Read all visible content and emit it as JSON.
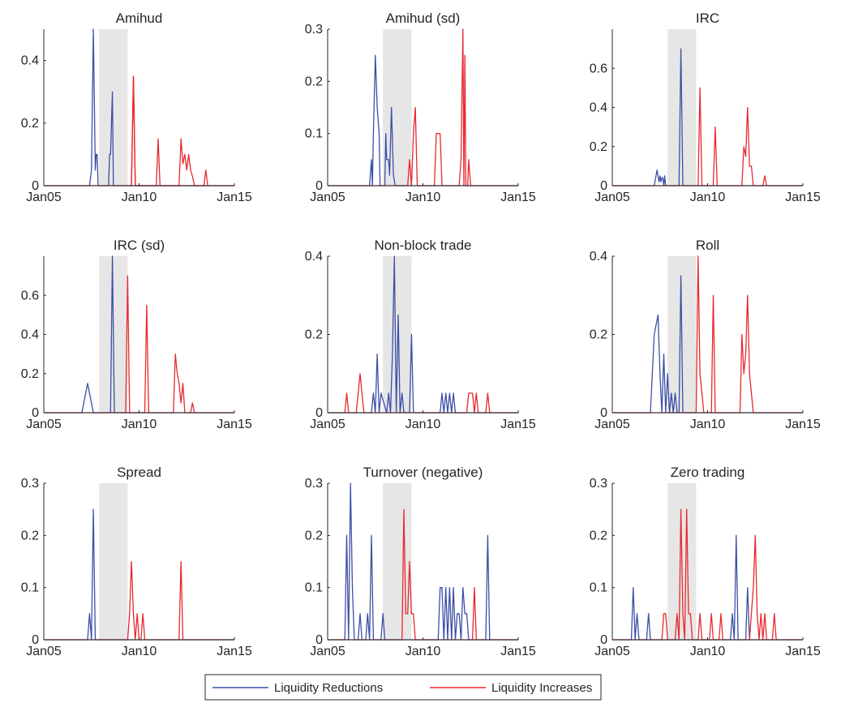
{
  "figure": {
    "x_ticks": [
      {
        "value": 2005,
        "label": "Jan05"
      },
      {
        "value": 2010,
        "label": "Jan10"
      },
      {
        "value": 2015,
        "label": "Jan15"
      }
    ],
    "x_range": [
      2005,
      2015
    ],
    "crisis_shading": [
      2007.9,
      2009.4
    ],
    "shading_color": "#e6e6e6",
    "legend": {
      "placement": "bottom-center",
      "entries": [
        {
          "label": "Liquidity Reductions",
          "color": "#3c4fa6"
        },
        {
          "label": "Liquidity Increases",
          "color": "#e8282f"
        }
      ]
    }
  },
  "chart_data": [
    {
      "type": "line",
      "title": "Amihud",
      "ylim": [
        0,
        0.5
      ],
      "yticks": [
        {
          "v": 0,
          "t": "0"
        },
        {
          "v": 0.2,
          "t": "0.2"
        },
        {
          "v": 0.4,
          "t": "0.4"
        }
      ],
      "grid": false,
      "series": [
        {
          "name": "Liquidity Reductions",
          "x": [
            2005,
            2007.4,
            2007.5,
            2007.6,
            2007.7,
            2007.75,
            2007.8,
            2007.85,
            2008.4,
            2008.45,
            2008.5,
            2008.6,
            2008.65,
            2015
          ],
          "y": [
            0,
            0,
            0.05,
            0.5,
            0.05,
            0.1,
            0.1,
            0,
            0,
            0.1,
            0.1,
            0.3,
            0,
            0
          ]
        },
        {
          "name": "Liquidity Increases",
          "x": [
            2005,
            2009.6,
            2009.7,
            2009.8,
            2015
          ],
          "y": [
            0,
            0,
            0.35,
            0,
            0
          ],
          "segments": [
            [
              2009.5,
              2009.6,
              2009.7,
              2009.8,
              2010.9,
              2011,
              2011.1,
              2012.1,
              2012.2,
              2012.3,
              2012.4,
              2012.5,
              2012.6,
              2012.7,
              2012.8,
              2012.9,
              2013.4,
              2013.5,
              2013.6
            ],
            [
              0,
              0,
              0.35,
              0,
              0,
              0.15,
              0,
              0,
              0.15,
              0.07,
              0.1,
              0.05,
              0.1,
              0.05,
              0.03,
              0,
              0,
              0.05,
              0
            ]
          ]
        }
      ]
    },
    {
      "type": "line",
      "title": "Amihud (sd)",
      "ylim": [
        0,
        0.3
      ],
      "yticks": [
        {
          "v": 0,
          "t": "0"
        },
        {
          "v": 0.1,
          "t": "0.1"
        },
        {
          "v": 0.2,
          "t": "0.2"
        },
        {
          "v": 0.3,
          "t": "0.3"
        }
      ],
      "grid": false,
      "series": [
        {
          "name": "Liquidity Reductions",
          "x": [
            2005,
            2007.2,
            2007.3,
            2007.35,
            2007.4,
            2007.5,
            2007.6,
            2007.7,
            2007.75,
            2008.0,
            2008.05,
            2008.1,
            2008.2,
            2008.25,
            2008.35,
            2008.45,
            2008.55,
            2015
          ],
          "y": [
            0,
            0,
            0.05,
            0,
            0.1,
            0.25,
            0.15,
            0.1,
            0,
            0,
            0.1,
            0.05,
            0.05,
            0.02,
            0.15,
            0.02,
            0,
            0
          ]
        },
        {
          "name": "Liquidity Increases",
          "x": [
            2005,
            2009.2,
            2009.3,
            2009.4,
            2009.5,
            2009.6,
            2009.7,
            2010.6,
            2010.7,
            2010.8,
            2010.9,
            2011.0,
            2011.9,
            2012.0,
            2012.1,
            2012.15,
            2012.2,
            2012.25,
            2012.35,
            2012.4,
            2012.5,
            2015
          ],
          "y": [
            0,
            0,
            0.05,
            0,
            0.1,
            0.15,
            0,
            0,
            0.1,
            0.1,
            0.1,
            0,
            0,
            0.05,
            0.3,
            0,
            0.25,
            0,
            0,
            0.05,
            0,
            0
          ]
        }
      ]
    },
    {
      "type": "line",
      "title": "IRC",
      "ylim": [
        0,
        0.8
      ],
      "yticks": [
        {
          "v": 0,
          "t": "0"
        },
        {
          "v": 0.2,
          "t": "0.2"
        },
        {
          "v": 0.4,
          "t": "0.4"
        },
        {
          "v": 0.6,
          "t": "0.6"
        }
      ],
      "grid": false,
      "series": [
        {
          "name": "Liquidity Reductions",
          "x": [
            2005,
            2007.2,
            2007.35,
            2007.45,
            2007.5,
            2007.55,
            2007.6,
            2007.65,
            2007.7,
            2007.75,
            2007.8,
            2008.5,
            2008.6,
            2008.7,
            2008.8,
            2015
          ],
          "y": [
            0,
            0,
            0.08,
            0.02,
            0.05,
            0.02,
            0.04,
            0.04,
            0,
            0.05,
            0,
            0,
            0.7,
            0,
            0,
            0
          ]
        },
        {
          "name": "Liquidity Increases",
          "x": [
            2005,
            2009.5,
            2009.6,
            2009.7,
            2010.3,
            2010.4,
            2010.5,
            2011.8,
            2011.9,
            2012.0,
            2012.1,
            2012.2,
            2012.3,
            2012.4,
            2012.5,
            2012.9,
            2013.0,
            2013.1,
            2015
          ],
          "y": [
            0,
            0,
            0.5,
            0,
            0,
            0.3,
            0,
            0,
            0.2,
            0.15,
            0.4,
            0.1,
            0.1,
            0,
            0,
            0,
            0.05,
            0,
            0
          ]
        }
      ]
    },
    {
      "type": "line",
      "title": "IRC (sd)",
      "ylim": [
        0,
        0.8
      ],
      "yticks": [
        {
          "v": 0,
          "t": "0"
        },
        {
          "v": 0.2,
          "t": "0.2"
        },
        {
          "v": 0.4,
          "t": "0.4"
        },
        {
          "v": 0.6,
          "t": "0.6"
        }
      ],
      "grid": false,
      "series": [
        {
          "name": "Liquidity Reductions",
          "x": [
            2005,
            2007.0,
            2007.3,
            2007.6,
            2008.5,
            2008.6,
            2008.7,
            2008.8,
            2015
          ],
          "y": [
            0,
            0,
            0.15,
            0,
            0,
            0.8,
            0,
            0,
            0
          ]
        },
        {
          "name": "Liquidity Increases",
          "x": [
            2005,
            2009.3,
            2009.4,
            2009.5,
            2010.3,
            2010.4,
            2010.5,
            2011.8,
            2011.9,
            2012.0,
            2012.1,
            2012.2,
            2012.3,
            2012.4,
            2012.7,
            2012.8,
            2012.9,
            2015
          ],
          "y": [
            0,
            0,
            0.7,
            0,
            0,
            0.55,
            0,
            0,
            0.3,
            0.2,
            0.15,
            0.05,
            0.15,
            0,
            0,
            0.05,
            0,
            0
          ]
        }
      ]
    },
    {
      "type": "line",
      "title": "Non-block trade",
      "ylim": [
        0,
        0.4
      ],
      "yticks": [
        {
          "v": 0,
          "t": "0"
        },
        {
          "v": 0.2,
          "t": "0.2"
        },
        {
          "v": 0.4,
          "t": "0.4"
        }
      ],
      "grid": false,
      "series": [
        {
          "name": "Liquidity Reductions",
          "x": [
            2005,
            2007.3,
            2007.4,
            2007.5,
            2007.6,
            2007.7,
            2007.8,
            2008.1,
            2008.2,
            2008.3,
            2008.4,
            2008.5,
            2008.6,
            2008.7,
            2008.8,
            2008.9,
            2009.0,
            2009.3,
            2009.4,
            2009.5,
            2010.9,
            2011.0,
            2011.1,
            2011.2,
            2011.3,
            2011.4,
            2011.5,
            2011.6,
            2011.7,
            2015
          ],
          "y": [
            0,
            0,
            0.05,
            0,
            0.15,
            0,
            0.05,
            0,
            0.05,
            0,
            0.15,
            0.4,
            0,
            0.25,
            0,
            0.05,
            0,
            0,
            0.2,
            0,
            0,
            0.05,
            0,
            0.05,
            0,
            0.05,
            0,
            0.05,
            0,
            0
          ]
        },
        {
          "name": "Liquidity Increases",
          "x": [
            2005,
            2005.9,
            2006.0,
            2006.1,
            2006.5,
            2006.7,
            2006.9,
            2012.3,
            2012.4,
            2012.5,
            2012.6,
            2012.7,
            2012.8,
            2012.9,
            2013.3,
            2013.4,
            2013.5,
            2015
          ],
          "y": [
            0,
            0,
            0.05,
            0,
            0,
            0.1,
            0,
            0,
            0.05,
            0.05,
            0.05,
            0,
            0.05,
            0,
            0,
            0.05,
            0,
            0
          ]
        }
      ]
    },
    {
      "type": "line",
      "title": "Roll",
      "ylim": [
        0,
        0.4
      ],
      "yticks": [
        {
          "v": 0,
          "t": "0"
        },
        {
          "v": 0.2,
          "t": "0.2"
        },
        {
          "v": 0.4,
          "t": "0.4"
        }
      ],
      "grid": false,
      "series": [
        {
          "name": "Liquidity Reductions",
          "x": [
            2005,
            2007.0,
            2007.2,
            2007.4,
            2007.5,
            2007.6,
            2007.7,
            2007.8,
            2007.9,
            2008.0,
            2008.1,
            2008.2,
            2008.3,
            2008.4,
            2008.5,
            2008.6,
            2008.7,
            2008.8,
            2015
          ],
          "y": [
            0,
            0,
            0.2,
            0.25,
            0.1,
            0,
            0.15,
            0,
            0.1,
            0,
            0.05,
            0,
            0.05,
            0,
            0,
            0.35,
            0,
            0,
            0
          ]
        },
        {
          "name": "Liquidity Increases",
          "x": [
            2005,
            2009.4,
            2009.5,
            2009.6,
            2009.7,
            2009.8,
            2010.2,
            2010.3,
            2010.4,
            2011.7,
            2011.8,
            2011.9,
            2012.0,
            2012.1,
            2012.2,
            2012.3,
            2012.4,
            2015
          ],
          "y": [
            0,
            0,
            0.4,
            0.1,
            0.05,
            0,
            0,
            0.3,
            0,
            0,
            0.2,
            0.1,
            0.15,
            0.3,
            0.1,
            0.05,
            0,
            0
          ]
        }
      ]
    },
    {
      "type": "line",
      "title": "Spread",
      "ylim": [
        0,
        0.3
      ],
      "yticks": [
        {
          "v": 0,
          "t": "0"
        },
        {
          "v": 0.1,
          "t": "0.1"
        },
        {
          "v": 0.2,
          "t": "0.2"
        },
        {
          "v": 0.3,
          "t": "0.3"
        }
      ],
      "grid": false,
      "series": [
        {
          "name": "Liquidity Reductions",
          "x": [
            2005,
            2007.3,
            2007.4,
            2007.5,
            2007.6,
            2007.7,
            2015
          ],
          "y": [
            0,
            0,
            0.05,
            0,
            0.25,
            0,
            0
          ]
        },
        {
          "name": "Liquidity Increases",
          "x": [
            2005,
            2009.4,
            2009.5,
            2009.6,
            2009.7,
            2009.8,
            2009.9,
            2010.0,
            2010.1,
            2010.2,
            2010.3,
            2012.1,
            2012.2,
            2012.3,
            2015
          ],
          "y": [
            0,
            0,
            0.05,
            0.15,
            0.05,
            0,
            0.05,
            0,
            0,
            0.05,
            0,
            0,
            0.15,
            0,
            0
          ]
        }
      ]
    },
    {
      "type": "line",
      "title": "Turnover (negative)",
      "ylim": [
        0,
        0.3
      ],
      "yticks": [
        {
          "v": 0,
          "t": "0"
        },
        {
          "v": 0.1,
          "t": "0.1"
        },
        {
          "v": 0.2,
          "t": "0.2"
        },
        {
          "v": 0.3,
          "t": "0.3"
        }
      ],
      "grid": false,
      "series": [
        {
          "name": "Liquidity Reductions",
          "x": [
            2005,
            2005.9,
            2006.0,
            2006.1,
            2006.2,
            2006.3,
            2006.4,
            2006.6,
            2006.7,
            2006.8,
            2007.0,
            2007.1,
            2007.2,
            2007.3,
            2007.4,
            2007.8,
            2007.9,
            2008.0,
            2010.8,
            2010.9,
            2011.0,
            2011.1,
            2011.2,
            2011.3,
            2011.4,
            2011.5,
            2011.6,
            2011.7,
            2011.8,
            2011.9,
            2012.0,
            2012.1,
            2012.2,
            2012.3,
            2012.4,
            2013.3,
            2013.4,
            2013.5,
            2015
          ],
          "y": [
            0,
            0,
            0.2,
            0,
            0.3,
            0.1,
            0,
            0,
            0.05,
            0,
            0,
            0.05,
            0,
            0.2,
            0,
            0,
            0.05,
            0,
            0,
            0.1,
            0.1,
            0,
            0.1,
            0,
            0.1,
            0,
            0.1,
            0,
            0.05,
            0.05,
            0,
            0.1,
            0.05,
            0.05,
            0,
            0,
            0.2,
            0,
            0
          ]
        },
        {
          "name": "Liquidity Increases",
          "x": [
            2005,
            2008.9,
            2009.0,
            2009.1,
            2009.2,
            2009.3,
            2009.4,
            2009.5,
            2009.6,
            2012.6,
            2012.7,
            2012.8,
            2015
          ],
          "y": [
            0,
            0,
            0.25,
            0.05,
            0.05,
            0.15,
            0.05,
            0.05,
            0,
            0,
            0.1,
            0,
            0
          ]
        }
      ]
    },
    {
      "type": "line",
      "title": "Zero trading",
      "ylim": [
        0,
        0.3
      ],
      "yticks": [
        {
          "v": 0,
          "t": "0"
        },
        {
          "v": 0.1,
          "t": "0.1"
        },
        {
          "v": 0.2,
          "t": "0.2"
        },
        {
          "v": 0.3,
          "t": "0.3"
        }
      ],
      "grid": false,
      "series": [
        {
          "name": "Liquidity Reductions",
          "x": [
            2005,
            2006.0,
            2006.1,
            2006.2,
            2006.3,
            2006.4,
            2006.8,
            2006.9,
            2007.0,
            2011.2,
            2011.3,
            2011.4,
            2011.5,
            2011.6,
            2012.0,
            2012.1,
            2012.2,
            2015
          ],
          "y": [
            0,
            0,
            0.1,
            0,
            0.05,
            0,
            0,
            0.05,
            0,
            0,
            0.05,
            0,
            0.2,
            0,
            0,
            0.1,
            0,
            0
          ]
        },
        {
          "name": "Liquidity Increases",
          "x": [
            2005,
            2007.6,
            2007.7,
            2007.8,
            2007.9,
            2008.0,
            2008.3,
            2008.4,
            2008.5,
            2008.6,
            2008.7,
            2008.8,
            2008.9,
            2009.0,
            2009.1,
            2009.2,
            2009.3,
            2009.5,
            2009.6,
            2009.7,
            2010.1,
            2010.2,
            2010.3,
            2010.6,
            2010.7,
            2010.8,
            2012.2,
            2012.3,
            2012.4,
            2012.5,
            2012.6,
            2012.7,
            2012.8,
            2012.9,
            2013.0,
            2013.1,
            2013.4,
            2013.5,
            2013.6,
            2015
          ],
          "y": [
            0,
            0,
            0.05,
            0.05,
            0,
            0,
            0,
            0.05,
            0,
            0.25,
            0.05,
            0,
            0.25,
            0.05,
            0.05,
            0,
            0,
            0,
            0.05,
            0,
            0,
            0.05,
            0,
            0,
            0.05,
            0,
            0,
            0.05,
            0.1,
            0.2,
            0.05,
            0,
            0.05,
            0,
            0.05,
            0,
            0,
            0.05,
            0,
            0
          ]
        }
      ]
    }
  ]
}
